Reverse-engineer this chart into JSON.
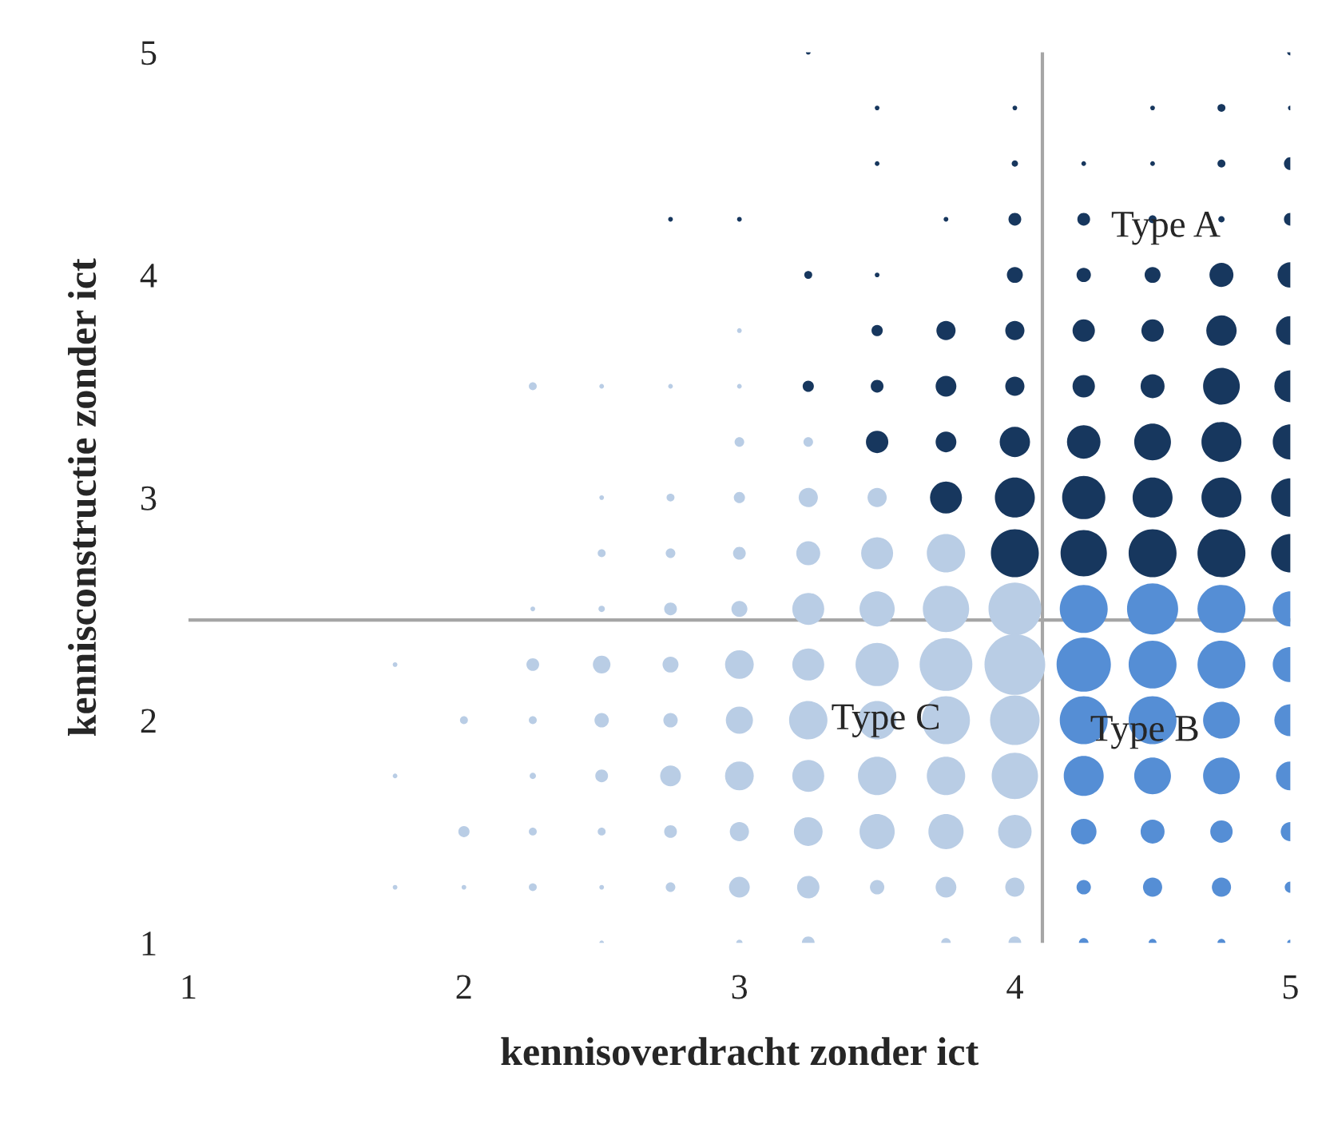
{
  "chart_data": {
    "type": "bubble",
    "xlabel": "kennisoverdracht zonder ict",
    "ylabel": "kennisconstructie zonder ict",
    "xlim": [
      1,
      5
    ],
    "ylim": [
      1,
      5
    ],
    "xticks": [
      1,
      2,
      3,
      4,
      5
    ],
    "yticks": [
      1,
      2,
      3,
      4,
      5
    ],
    "grid": false,
    "legend": false,
    "marker": "circle",
    "ref_lines": [
      {
        "axis": "x",
        "value": 4.1,
        "color": "#a6a6a6"
      },
      {
        "axis": "y",
        "value": 2.45,
        "color": "#a6a6a6"
      }
    ],
    "annotations": [
      "Type A",
      "Type B",
      "Type C"
    ],
    "series": [
      {
        "color": "#b9cde5",
        "x": [
          1.75,
          1.75,
          1.75,
          2,
          2,
          2,
          2.25,
          2.25,
          2.25,
          2.25,
          2.25,
          2.25,
          2.25,
          2.5,
          2.5,
          2.5,
          2.5,
          2.5,
          2.5,
          2.5,
          2.5,
          2.5,
          2.5,
          2.75,
          2.75,
          2.75,
          2.75,
          2.75,
          2.75,
          2.75,
          2.75,
          2.75,
          3,
          3,
          3,
          3,
          3,
          3,
          3,
          3,
          3,
          3,
          3,
          3,
          3.25,
          3.25,
          3.25,
          3.25,
          3.25,
          3.25,
          3.25,
          3.25,
          3.25,
          3.25,
          3.5,
          3.5,
          3.5,
          3.5,
          3.5,
          3.5,
          3.5,
          3.5,
          3.75,
          3.75,
          3.75,
          3.75,
          3.75,
          3.75,
          3.75,
          3.75,
          4,
          4,
          4,
          4,
          4,
          4,
          4
        ],
        "values": [
          2.25,
          1.75,
          1.25,
          2,
          1.5,
          1.25,
          3.5,
          2.5,
          2.25,
          2,
          1.75,
          1.5,
          1.25,
          3.5,
          3,
          2.75,
          2.5,
          2.25,
          2,
          1.75,
          1.5,
          1.25,
          1,
          3.5,
          3,
          2.75,
          2.5,
          2.25,
          2,
          1.75,
          1.5,
          1.25,
          3.75,
          3.5,
          3.25,
          3,
          2.75,
          2.5,
          2.25,
          2,
          1.75,
          1.5,
          1.25,
          1,
          3.25,
          3,
          2.75,
          2.5,
          2.25,
          2,
          1.75,
          1.5,
          1.25,
          1,
          3,
          2.75,
          2.5,
          2.25,
          2,
          1.75,
          1.5,
          1.25,
          2.75,
          2.5,
          2.25,
          2,
          1.75,
          1.5,
          1.25,
          1,
          2.5,
          2.25,
          2,
          1.75,
          1.5,
          1.25,
          1
        ],
        "sizes": [
          0.006,
          0.006,
          0.006,
          0.017,
          0.034,
          0.006,
          0.017,
          0.006,
          0.044,
          0.017,
          0.011,
          0.017,
          0.017,
          0.006,
          0.006,
          0.017,
          0.011,
          0.084,
          0.056,
          0.044,
          0.017,
          0.006,
          0.006,
          0.006,
          0.017,
          0.025,
          0.044,
          0.069,
          0.056,
          0.117,
          0.044,
          0.025,
          0.006,
          0.006,
          0.025,
          0.034,
          0.044,
          0.069,
          0.224,
          0.2,
          0.224,
          0.1,
          0.117,
          0.011,
          0.025,
          0.1,
          0.156,
          0.277,
          0.277,
          0.399,
          0.277,
          0.224,
          0.136,
          0.044,
          0.1,
          0.277,
          0.335,
          0.505,
          0.399,
          0.399,
          0.335,
          0.056,
          0.399,
          0.582,
          0.754,
          0.623,
          0.399,
          0.335,
          0.117,
          0.025,
          0.754,
          1,
          0.666,
          0.582,
          0.305,
          0.1,
          0.044
        ]
      },
      {
        "color": "#558ed5",
        "x": [
          4.25,
          4.25,
          4.25,
          4.25,
          4.25,
          4.25,
          4.25,
          4.5,
          4.5,
          4.5,
          4.5,
          4.5,
          4.5,
          4.5,
          4.75,
          4.75,
          4.75,
          4.75,
          4.75,
          4.75,
          4.75,
          5,
          5,
          5,
          5,
          5,
          5,
          5
        ],
        "values": [
          2.5,
          2.25,
          2,
          1.75,
          1.5,
          1.25,
          1,
          2.5,
          2.25,
          2,
          1.75,
          1.5,
          1.25,
          1,
          2.5,
          2.25,
          2,
          1.75,
          1.5,
          1.25,
          1,
          2.5,
          2.25,
          2,
          1.75,
          1.5,
          1.25,
          1
        ],
        "sizes": [
          0.623,
          0.8,
          0.623,
          0.433,
          0.177,
          0.056,
          0.025,
          0.709,
          0.623,
          0.623,
          0.366,
          0.156,
          0.1,
          0.017,
          0.623,
          0.623,
          0.366,
          0.366,
          0.136,
          0.1,
          0.017,
          0.335,
          0.335,
          0.277,
          0.224,
          0.1,
          0.034,
          0.011
        ]
      },
      {
        "color": "#17375e",
        "x": [
          2.75,
          3,
          3.25,
          3.25,
          3.25,
          3.5,
          3.5,
          3.5,
          3.5,
          3.5,
          3.5,
          3.75,
          3.75,
          3.75,
          3.75,
          3.75,
          4,
          4,
          4,
          4,
          4,
          4,
          4,
          4,
          4,
          4.25,
          4.25,
          4.25,
          4.25,
          4.25,
          4.25,
          4.25,
          4.25,
          4.5,
          4.5,
          4.5,
          4.5,
          4.5,
          4.5,
          4.5,
          4.5,
          4.5,
          4.75,
          4.75,
          4.75,
          4.75,
          4.75,
          4.75,
          4.75,
          4.75,
          4.75,
          5,
          5,
          5,
          5,
          5,
          5,
          5,
          5,
          5,
          5
        ],
        "values": [
          4.25,
          4.25,
          5,
          4,
          3.5,
          4.75,
          4.5,
          4,
          3.75,
          3.5,
          3.25,
          4.25,
          3.75,
          3.5,
          3.25,
          3,
          4.75,
          4.5,
          4.25,
          4,
          3.75,
          3.5,
          3.25,
          3,
          2.75,
          4.5,
          4.25,
          4,
          3.75,
          3.5,
          3.25,
          3,
          2.75,
          4.75,
          4.5,
          4.25,
          4,
          3.75,
          3.5,
          3.25,
          3,
          2.75,
          4.75,
          4.5,
          4.25,
          4,
          3.75,
          3.5,
          3.25,
          3,
          2.75,
          5,
          4.75,
          4.5,
          4.25,
          4,
          3.75,
          3.5,
          3.25,
          3,
          2.75
        ],
        "sizes": [
          0.006,
          0.006,
          0.006,
          0.017,
          0.034,
          0.006,
          0.006,
          0.006,
          0.034,
          0.044,
          0.136,
          0.006,
          0.1,
          0.117,
          0.117,
          0.277,
          0.006,
          0.011,
          0.044,
          0.069,
          0.1,
          0.1,
          0.25,
          0.433,
          0.623,
          0.006,
          0.044,
          0.056,
          0.136,
          0.136,
          0.305,
          0.505,
          0.582,
          0.006,
          0.006,
          0.017,
          0.069,
          0.136,
          0.156,
          0.366,
          0.433,
          0.623,
          0.017,
          0.017,
          0.011,
          0.156,
          0.25,
          0.366,
          0.433,
          0.433,
          0.623,
          0.011,
          0.006,
          0.044,
          0.044,
          0.177,
          0.224,
          0.277,
          0.335,
          0.399,
          0.399
        ]
      }
    ]
  }
}
